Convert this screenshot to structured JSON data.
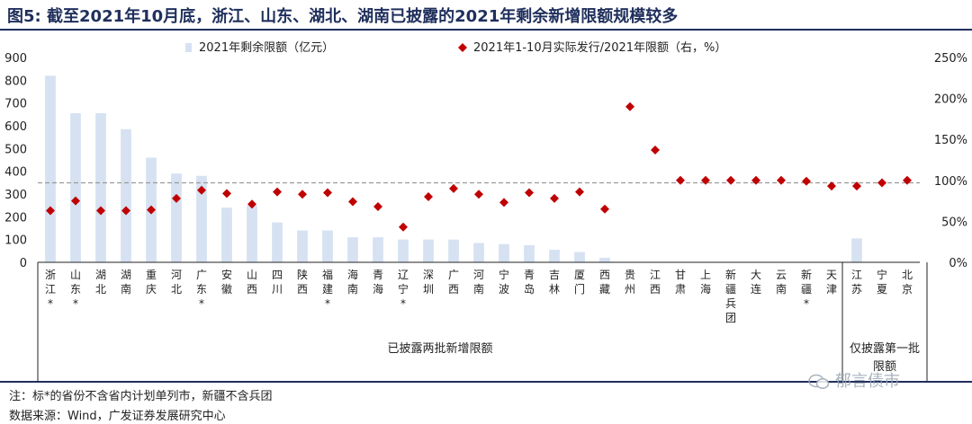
{
  "header": {
    "fig_label": "图5:",
    "title_text": "截至2021年10月底，浙江、山东、湖北、湖南已披露的2021年剩余新增限额规模较多"
  },
  "footer": {
    "note": "注：标*的省份不含省内计划单列市，新疆不含兵团",
    "source": "数据来源：Wind，广发证券发展研究中心",
    "watermark": "郁言债市"
  },
  "colors": {
    "bar": "#d6e2f2",
    "marker": "#c00000",
    "ref_line": "#9a9a9a",
    "title": "#1f2f5c"
  },
  "chart_data": {
    "type": "bar",
    "categories": [
      "浙江*",
      "山东*",
      "湖北",
      "湖南",
      "重庆",
      "河北",
      "广东*",
      "安徽",
      "山西",
      "四川",
      "陕西",
      "福建*",
      "海南",
      "青海",
      "辽宁*",
      "深圳",
      "广西",
      "河南",
      "宁波",
      "青岛",
      "吉林",
      "厦门",
      "西藏",
      "贵州",
      "江西",
      "甘肃",
      "上海",
      "新疆兵团",
      "大连",
      "云南",
      "新疆*",
      "天津",
      "江苏",
      "宁夏",
      "北京"
    ],
    "category_labels": [
      [
        "浙",
        "江",
        "*"
      ],
      [
        "山",
        "东",
        "*"
      ],
      [
        "湖",
        "北"
      ],
      [
        "湖",
        "南"
      ],
      [
        "重",
        "庆"
      ],
      [
        "河",
        "北"
      ],
      [
        "广",
        "东",
        "*"
      ],
      [
        "安",
        "徽"
      ],
      [
        "山",
        "西"
      ],
      [
        "四",
        "川"
      ],
      [
        "陕",
        "西"
      ],
      [
        "福",
        "建",
        "*"
      ],
      [
        "海",
        "南"
      ],
      [
        "青",
        "海"
      ],
      [
        "辽",
        "宁",
        "*"
      ],
      [
        "深",
        "圳"
      ],
      [
        "广",
        "西"
      ],
      [
        "河",
        "南"
      ],
      [
        "宁",
        "波"
      ],
      [
        "青",
        "岛"
      ],
      [
        "吉",
        "林"
      ],
      [
        "厦",
        "门"
      ],
      [
        "西",
        "藏"
      ],
      [
        "贵",
        "州"
      ],
      [
        "江",
        "西"
      ],
      [
        "甘",
        "肃"
      ],
      [
        "上",
        "海"
      ],
      [
        "新",
        "疆",
        "兵",
        "团"
      ],
      [
        "大",
        "连"
      ],
      [
        "云",
        "南"
      ],
      [
        "新",
        "疆",
        "*"
      ],
      [
        "天",
        "津"
      ],
      [
        "江",
        "苏"
      ],
      [
        "宁",
        "夏"
      ],
      [
        "北",
        "京"
      ]
    ],
    "series": [
      {
        "name": "2021年剩余限额（亿元）",
        "kind": "bar",
        "axis": "left",
        "values": [
          820,
          655,
          655,
          585,
          460,
          390,
          380,
          240,
          250,
          175,
          140,
          140,
          110,
          110,
          100,
          100,
          100,
          85,
          80,
          75,
          55,
          45,
          20,
          0,
          0,
          0,
          0,
          0,
          0,
          0,
          0,
          0,
          105,
          0,
          0
        ]
      },
      {
        "name": "2021年1-10月实际发行/2021年限额（右，%）",
        "kind": "scatter",
        "axis": "right",
        "values": [
          63,
          75,
          63,
          63,
          64,
          78,
          88,
          84,
          71,
          86,
          83,
          85,
          74,
          68,
          43,
          80,
          90,
          83,
          73,
          85,
          78,
          86,
          65,
          190,
          137,
          100,
          100,
          100,
          100,
          100,
          99,
          93,
          93,
          97,
          100
        ]
      }
    ],
    "left_axis": {
      "min": 0,
      "max": 900,
      "ticks": [
        "0",
        "100",
        "200",
        "300",
        "400",
        "500",
        "600",
        "700",
        "800",
        "900"
      ]
    },
    "right_axis": {
      "min": 0,
      "max": 250,
      "ticks": [
        "0%",
        "50%",
        "100%",
        "150%",
        "200%",
        "250%"
      ]
    },
    "reference_line_right": 97,
    "groups": [
      {
        "label": "已披露两批新增限额",
        "from": 0,
        "to": 31
      },
      {
        "label": "仅披露第一批限额",
        "from": 32,
        "to": 34
      }
    ],
    "legend_position": "top"
  }
}
